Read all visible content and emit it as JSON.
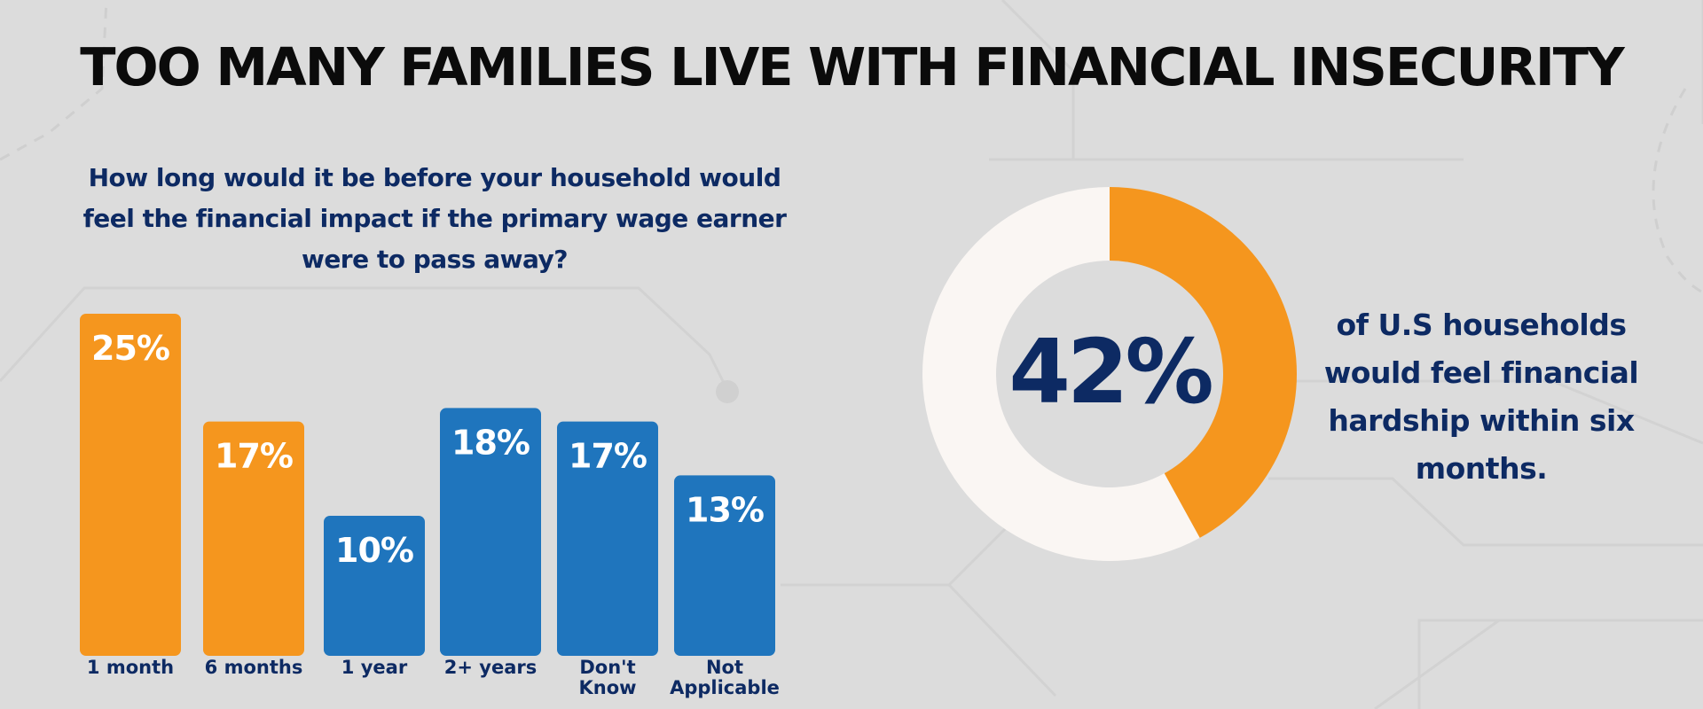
{
  "title": "TOO MANY FAMILIES LIVE WITH FINANCIAL INSECURITY",
  "chart_data": [
    {
      "type": "bar",
      "title": "How long would it be before your household would feel the financial impact if the primary wage earner were to pass away?",
      "categories": [
        "1 month",
        "6 months",
        "1 year",
        "2+ years",
        "Don't Know",
        "Not Applicable"
      ],
      "values": [
        25,
        17,
        10,
        18,
        17,
        13
      ],
      "value_labels": [
        "25%",
        "17%",
        "10%",
        "18%",
        "17%",
        "13%"
      ],
      "bar_colors": [
        "#f5961e",
        "#f5961e",
        "#1f75bd",
        "#1f75bd",
        "#1f75bd",
        "#1f75bd"
      ],
      "ylim": [
        0,
        25
      ],
      "grid": false,
      "legend": "none"
    },
    {
      "type": "pie",
      "style": "donut",
      "values": [
        42,
        58
      ],
      "colors": [
        "#f5961e",
        "#faf6f3"
      ],
      "center_label": "42%",
      "caption": "of U.S households would feel financial hardship within six months."
    }
  ],
  "colors": {
    "background": "#dcdcdc",
    "accent_orange": "#f5961e",
    "accent_blue": "#1f75bd",
    "navy_text": "#0d2a63"
  }
}
